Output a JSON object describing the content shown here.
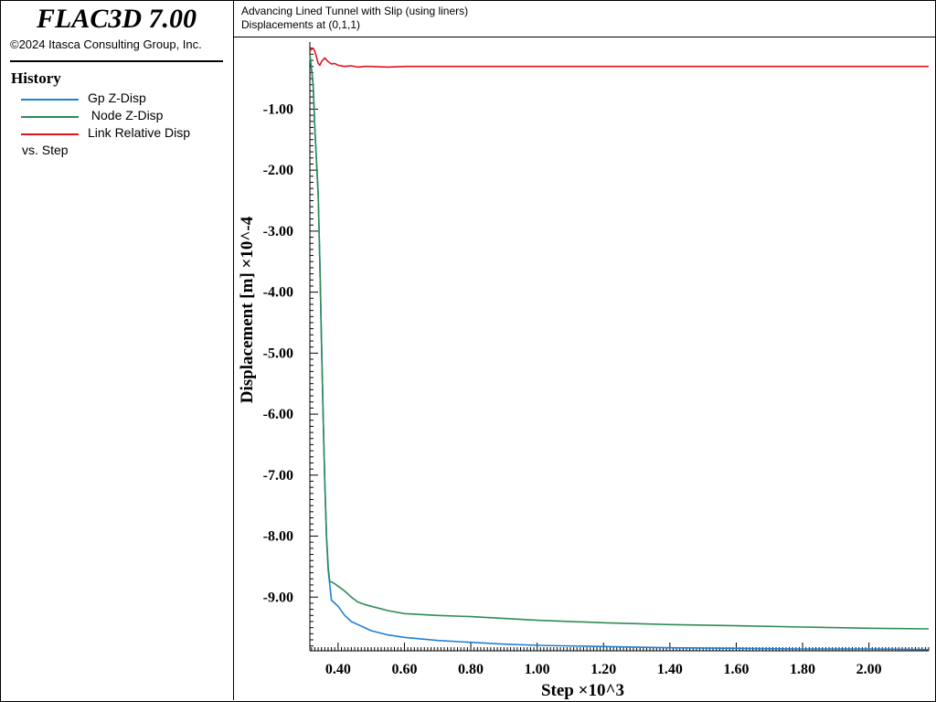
{
  "app": {
    "title": "FLAC3D 7.00",
    "copyright": "©2024 Itasca Consulting Group, Inc."
  },
  "sidebar": {
    "heading": "History",
    "legend": [
      {
        "label": "Gp Z-Disp",
        "color": "#1f7fd6"
      },
      {
        "label": " Node Z-Disp",
        "color": "#2e8b57"
      },
      {
        "label": "Link Relative Disp",
        "color": "#e0141e"
      }
    ],
    "vs_label": "vs. Step"
  },
  "header": {
    "line1": "Advancing Lined Tunnel with Slip (using liners)",
    "line2": "Displacements at (0,1,1)"
  },
  "chart_data": {
    "type": "line",
    "xlabel": "Step ×10^3",
    "ylabel": "Displacement [m] ×10^-4",
    "xlim": [
      0.315,
      2.18
    ],
    "ylim": [
      -9.88,
      0.1
    ],
    "xticks": [
      0.4,
      0.6,
      0.8,
      1.0,
      1.2,
      1.4,
      1.6,
      1.8,
      2.0
    ],
    "xtick_labels": [
      "0.40",
      "0.60",
      "0.80",
      "1.00",
      "1.20",
      "1.40",
      "1.60",
      "1.80",
      "2.00"
    ],
    "yticks": [
      -1,
      -2,
      -3,
      -4,
      -5,
      -6,
      -7,
      -8,
      -9
    ],
    "ytick_labels": [
      "-1.00",
      "-2.00",
      "-3.00",
      "-4.00",
      "-5.00",
      "-6.00",
      "-7.00",
      "-8.00",
      "-9.00"
    ],
    "grid": false,
    "series": [
      {
        "name": "Gp Z-Disp",
        "color": "#1f7fd6",
        "x": [
          0.315,
          0.325,
          0.33,
          0.34,
          0.345,
          0.35,
          0.355,
          0.36,
          0.365,
          0.37,
          0.375,
          0.38,
          0.39,
          0.4,
          0.42,
          0.44,
          0.46,
          0.48,
          0.5,
          0.55,
          0.6,
          0.7,
          0.8,
          0.9,
          1.0,
          1.2,
          1.4,
          1.6,
          1.8,
          2.0,
          2.18
        ],
        "y": [
          -0.1,
          -0.6,
          -1.3,
          -2.4,
          -3.5,
          -4.8,
          -6.0,
          -7.1,
          -8.0,
          -8.55,
          -8.8,
          -9.05,
          -9.1,
          -9.15,
          -9.3,
          -9.4,
          -9.45,
          -9.5,
          -9.55,
          -9.62,
          -9.66,
          -9.71,
          -9.74,
          -9.77,
          -9.79,
          -9.81,
          -9.83,
          -9.84,
          -9.85,
          -9.85,
          -9.86
        ]
      },
      {
        "name": " Node Z-Disp",
        "color": "#2e8b57",
        "x": [
          0.315,
          0.325,
          0.33,
          0.34,
          0.345,
          0.35,
          0.355,
          0.36,
          0.365,
          0.37,
          0.375,
          0.38,
          0.39,
          0.4,
          0.42,
          0.44,
          0.46,
          0.48,
          0.5,
          0.55,
          0.6,
          0.7,
          0.8,
          0.9,
          1.0,
          1.2,
          1.4,
          1.6,
          1.8,
          2.0,
          2.18
        ],
        "y": [
          -0.1,
          -0.6,
          -1.3,
          -2.4,
          -3.5,
          -4.8,
          -6.0,
          -7.1,
          -8.0,
          -8.5,
          -8.75,
          -8.75,
          -8.78,
          -8.82,
          -8.9,
          -9.0,
          -9.08,
          -9.12,
          -9.15,
          -9.22,
          -9.27,
          -9.3,
          -9.32,
          -9.35,
          -9.38,
          -9.42,
          -9.45,
          -9.47,
          -9.49,
          -9.51,
          -9.52
        ]
      },
      {
        "name": "Link Relative Disp",
        "color": "#e0141e",
        "x": [
          0.315,
          0.32,
          0.325,
          0.33,
          0.335,
          0.34,
          0.345,
          0.35,
          0.36,
          0.37,
          0.38,
          0.39,
          0.4,
          0.42,
          0.44,
          0.46,
          0.48,
          0.5,
          0.55,
          0.6,
          0.8,
          1.0,
          1.5,
          2.0,
          2.18
        ],
        "y": [
          -0.05,
          -0.02,
          0.0,
          -0.05,
          -0.15,
          -0.25,
          -0.28,
          -0.22,
          -0.16,
          -0.22,
          -0.26,
          -0.25,
          -0.28,
          -0.3,
          -0.29,
          -0.31,
          -0.3,
          -0.3,
          -0.31,
          -0.3,
          -0.3,
          -0.3,
          -0.3,
          -0.3,
          -0.3
        ]
      }
    ]
  }
}
